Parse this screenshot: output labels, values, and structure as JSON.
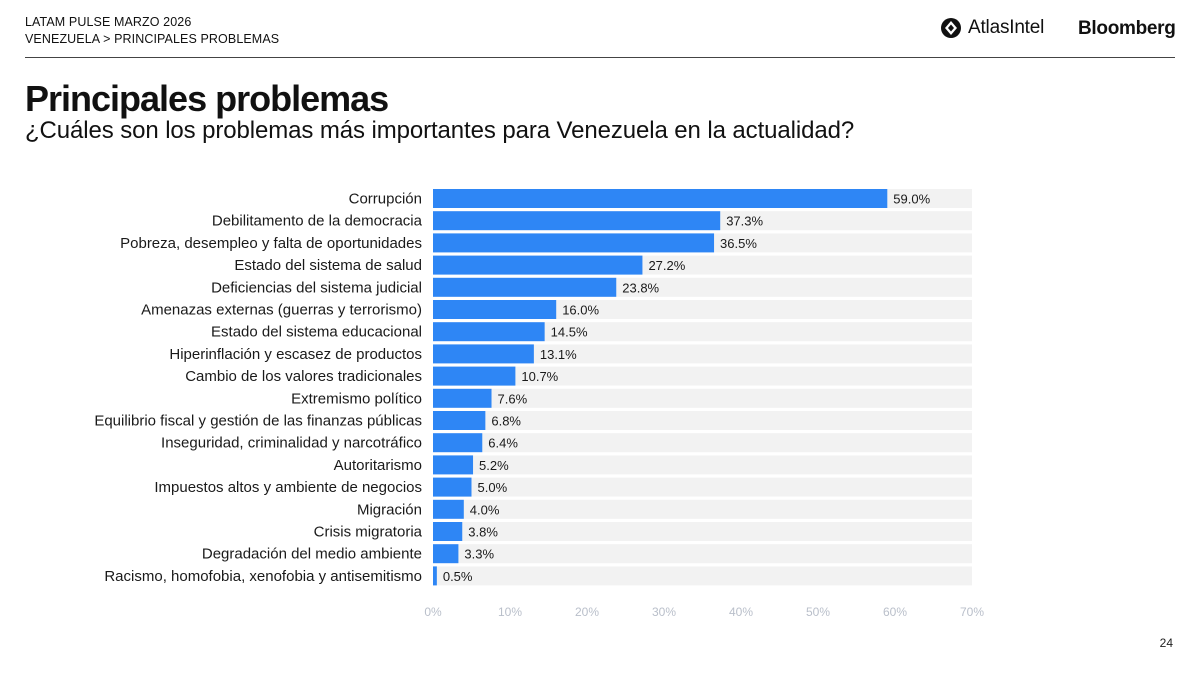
{
  "header": {
    "line1": "LATAM PULSE MARZO 2026",
    "line2": "VENEZUELA > PRINCIPALES PROBLEMAS"
  },
  "logos": {
    "atlas": "AtlasIntel",
    "bloomberg": "Bloomberg"
  },
  "title": "Principales problemas",
  "subtitle": "¿Cuáles son los problemas más importantes para Venezuela en la actualidad?",
  "page_number": "24",
  "colors": {
    "bar": "#2e86f5",
    "track": "#f2f2f2",
    "axis_tick": "#b9bfca"
  },
  "chart_data": {
    "type": "bar",
    "orientation": "horizontal",
    "title": "Principales problemas",
    "xlabel": "",
    "ylabel": "",
    "xlim": [
      0,
      70
    ],
    "xticks": [
      0,
      10,
      20,
      30,
      40,
      50,
      60,
      70
    ],
    "xtick_labels": [
      "0%",
      "10%",
      "20%",
      "30%",
      "40%",
      "50%",
      "60%",
      "70%"
    ],
    "unit": "%",
    "categories": [
      "Corrupción",
      "Debilitamento de la democracia",
      "Pobreza, desempleo y falta de oportunidades",
      "Estado del sistema de salud",
      "Deficiencias del sistema judicial",
      "Amenazas externas (guerras y terrorismo)",
      "Estado del sistema educacional",
      "Hiperinflación y escasez de productos",
      "Cambio de los valores tradicionales",
      "Extremismo político",
      "Equilibrio fiscal y gestión de las finanzas públicas",
      "Inseguridad, criminalidad y narcotráfico",
      "Autoritarismo",
      "Impuestos altos y ambiente de negocios",
      "Migración",
      "Crisis migratoria",
      "Degradación del medio ambiente",
      "Racismo, homofobia, xenofobia y antisemitismo"
    ],
    "values": [
      59.0,
      37.3,
      36.5,
      27.2,
      23.8,
      16.0,
      14.5,
      13.1,
      10.7,
      7.6,
      6.8,
      6.4,
      5.2,
      5.0,
      4.0,
      3.8,
      3.3,
      0.5
    ],
    "value_labels": [
      "59.0%",
      "37.3%",
      "36.5%",
      "27.2%",
      "23.8%",
      "16.0%",
      "14.5%",
      "13.1%",
      "10.7%",
      "7.6%",
      "6.8%",
      "6.4%",
      "5.2%",
      "5.0%",
      "4.0%",
      "3.8%",
      "3.3%",
      "0.5%"
    ],
    "grid": false
  }
}
